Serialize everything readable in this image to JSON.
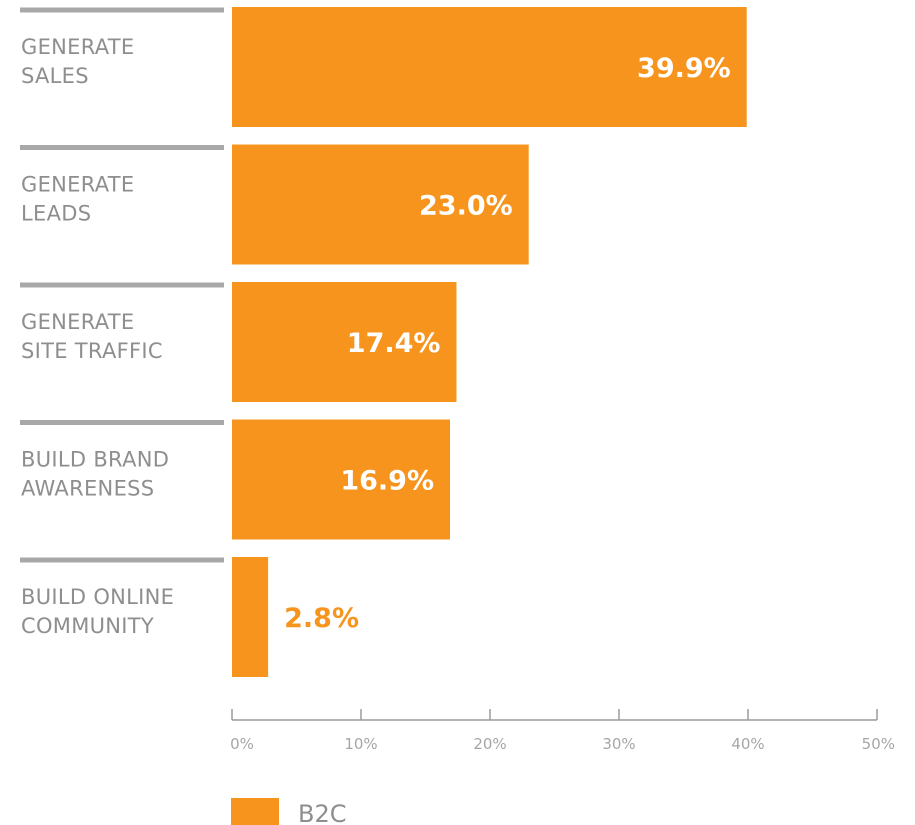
{
  "chart_data": {
    "type": "bar",
    "orientation": "horizontal",
    "categories": [
      [
        "GENERATE",
        "SALES"
      ],
      [
        "GENERATE",
        "LEADS"
      ],
      [
        "GENERATE",
        "SITE TRAFFIC"
      ],
      [
        "BUILD BRAND",
        "AWARENESS"
      ],
      [
        "BUILD ONLINE",
        "COMMUNITY"
      ]
    ],
    "series": [
      {
        "name": "B2C",
        "color": "#f7941d",
        "values": [
          39.9,
          23.0,
          17.4,
          16.9,
          2.8
        ],
        "value_labels": [
          "39.9%",
          "23.0%",
          "17.4%",
          "16.9%",
          "2.8%"
        ]
      }
    ],
    "xlim": [
      0,
      50
    ],
    "x_ticks": [
      0,
      10,
      20,
      30,
      40,
      50
    ],
    "x_tick_labels": [
      "0%",
      "10%",
      "20%",
      "30%",
      "40%",
      "50%"
    ],
    "grid": false,
    "legend": {
      "position": "bottom-left",
      "entries": [
        "B2C"
      ]
    }
  }
}
